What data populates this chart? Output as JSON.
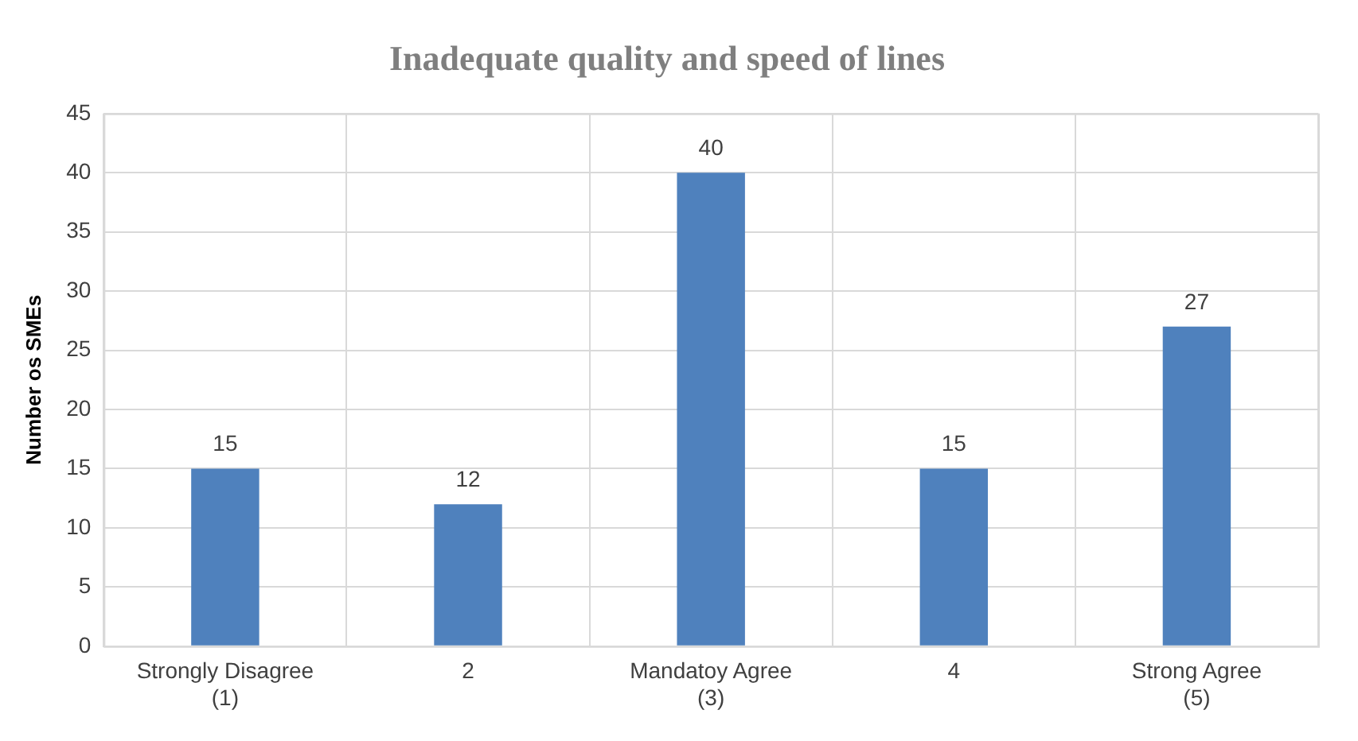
{
  "chart_data": {
    "type": "bar",
    "title": "Inadequate quality and speed of lines",
    "ylabel": "Number os SMEs",
    "categories": [
      "Strongly Disagree (1)",
      "2",
      "Mandatoy Agree (3)",
      "4",
      "Strong Agree (5)"
    ],
    "values": [
      15,
      12,
      40,
      15,
      27
    ],
    "color": "#4f81bd",
    "ylim": [
      0,
      45
    ],
    "yticks": [
      0,
      5,
      10,
      15,
      20,
      25,
      30,
      35,
      40,
      45
    ],
    "grid": true,
    "data_labels": true
  }
}
